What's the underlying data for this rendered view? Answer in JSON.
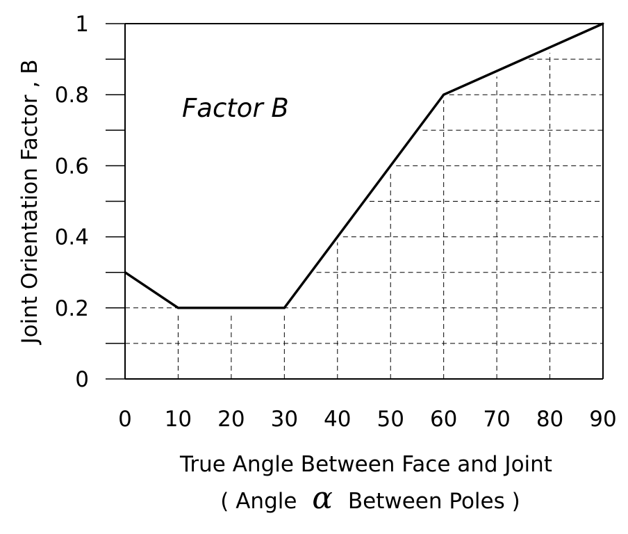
{
  "chart_data": {
    "type": "line",
    "ylabel": "Joint Orientation Factor , B",
    "xlabel_line1": "True Angle Between Face and Joint",
    "xlabel_line2_prefix": "( Angle",
    "xlabel_line2_symbol": "α",
    "xlabel_line2_suffix": "Between Poles )",
    "annotation": "Factor B",
    "xlim": [
      0,
      90
    ],
    "ylim": [
      0,
      1
    ],
    "x_ticks": [
      0,
      10,
      20,
      30,
      40,
      50,
      60,
      70,
      80,
      90
    ],
    "x_tick_labels": [
      "0",
      "10",
      "20",
      "30",
      "40",
      "50",
      "60",
      "70",
      "80",
      "90"
    ],
    "y_ticks": [
      0,
      0.2,
      0.4,
      0.6,
      0.8,
      1
    ],
    "y_tick_labels": [
      "0",
      "0.2",
      "0.4",
      "0.6",
      "0.8",
      "1"
    ],
    "y_minor_ticks": [
      0.1,
      0.3,
      0.5,
      0.7,
      0.9
    ],
    "series": [
      {
        "x": [
          0,
          10,
          30,
          60,
          90
        ],
        "y": [
          0.3,
          0.2,
          0.2,
          0.8,
          1.0
        ]
      }
    ],
    "grid": "dashed, below curve",
    "line_color": "#000000",
    "grid_color": "#000000"
  }
}
